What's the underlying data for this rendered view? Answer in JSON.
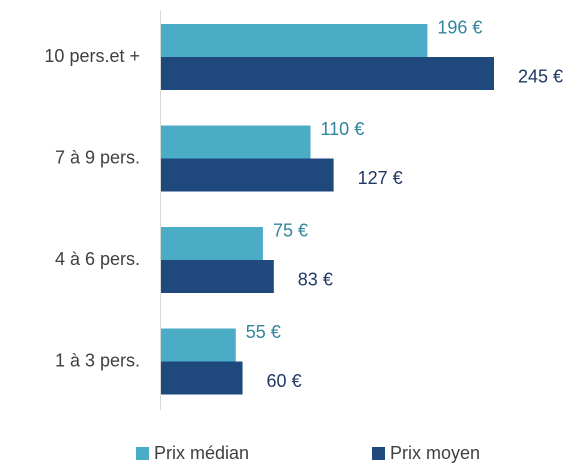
{
  "chart_data": {
    "type": "barh",
    "categories": [
      "10 pers.et +",
      "7 à 9 pers.",
      "4 à 6 pers.",
      "1 à 3 pers."
    ],
    "series": [
      {
        "name": "Prix médian",
        "color": "#4bacc6",
        "values": [
          196,
          110,
          75,
          55
        ],
        "value_labels": [
          "196 €",
          "110 €",
          "75 €",
          "55 €"
        ]
      },
      {
        "name": "Prix moyen",
        "color": "#1f497d",
        "values": [
          245,
          127,
          83,
          60
        ],
        "value_labels": [
          "245 €",
          "127 €",
          "83 €",
          "60 €"
        ]
      }
    ]
  }
}
